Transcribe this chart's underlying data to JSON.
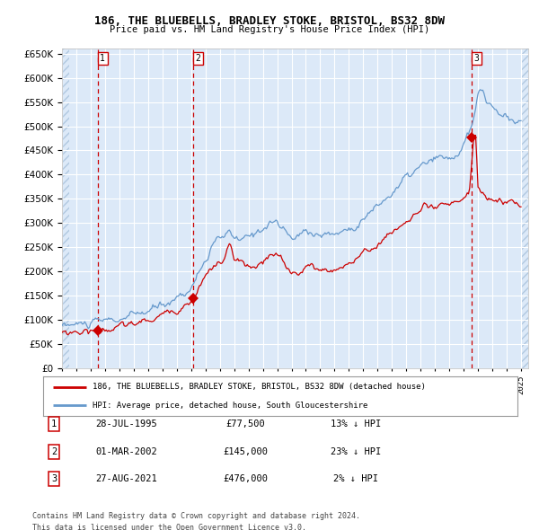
{
  "title1": "186, THE BLUEBELLS, BRADLEY STOKE, BRISTOL, BS32 8DW",
  "title2": "Price paid vs. HM Land Registry's House Price Index (HPI)",
  "legend1": "186, THE BLUEBELLS, BRADLEY STOKE, BRISTOL, BS32 8DW (detached house)",
  "legend2": "HPI: Average price, detached house, South Gloucestershire",
  "footer1": "Contains HM Land Registry data © Crown copyright and database right 2024.",
  "footer2": "This data is licensed under the Open Government Licence v3.0.",
  "transactions": [
    {
      "num": 1,
      "date": "28-JUL-1995",
      "price": 77500,
      "pct": "13%",
      "dir": "↓"
    },
    {
      "num": 2,
      "date": "01-MAR-2002",
      "price": 145000,
      "pct": "23%",
      "dir": "↓"
    },
    {
      "num": 3,
      "date": "27-AUG-2021",
      "price": 476000,
      "pct": "2%",
      "dir": "↓"
    }
  ],
  "bg_color": "#dce9f8",
  "grid_color": "#ffffff",
  "red_color": "#cc0000",
  "blue_color": "#6699cc",
  "hatch_color": "#c0d4ea",
  "border_color": "#aaaaaa"
}
